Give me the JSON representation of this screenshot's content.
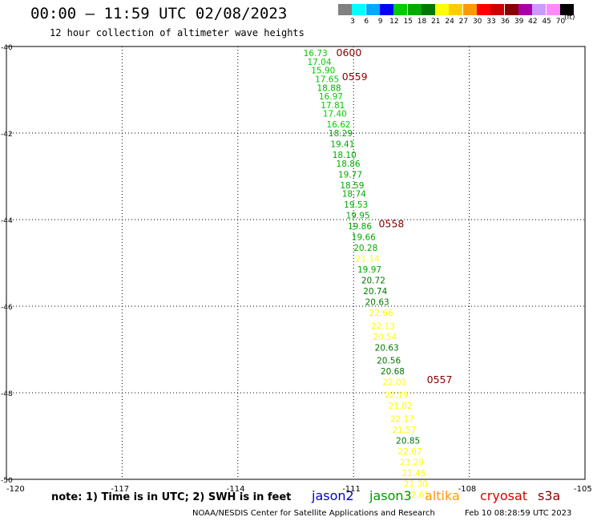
{
  "header": {
    "title": "00:00 – 11:59 UTC 02/08/2023",
    "subtitle": "12 hour collection of altimeter wave heights"
  },
  "color_scale": {
    "units": "(ft)",
    "swatches": [
      {
        "color": "#808080",
        "label": "3"
      },
      {
        "color": "#00ffff",
        "label": "6"
      },
      {
        "color": "#00aaff",
        "label": "9"
      },
      {
        "color": "#0000ff",
        "label": "12"
      },
      {
        "color": "#00cc00",
        "label": "15"
      },
      {
        "color": "#00aa00",
        "label": "18"
      },
      {
        "color": "#007700",
        "label": "21"
      },
      {
        "color": "#ffff00",
        "label": "24"
      },
      {
        "color": "#ffcc00",
        "label": "27"
      },
      {
        "color": "#ff9900",
        "label": "30"
      },
      {
        "color": "#ff0000",
        "label": "33"
      },
      {
        "color": "#cc0000",
        "label": "36"
      },
      {
        "color": "#880000",
        "label": "39"
      },
      {
        "color": "#aa00aa",
        "label": "42"
      },
      {
        "color": "#cc99ff",
        "label": "45"
      },
      {
        "color": "#ff88ff",
        "label": "70"
      },
      {
        "color": "#000000",
        "label": ""
      }
    ]
  },
  "chart_data": {
    "type": "scatter",
    "xlim": [
      -120,
      -105
    ],
    "ylim": [
      -50,
      -40
    ],
    "x_ticks": [
      "-120",
      "-117",
      "-114",
      "-111",
      "-108",
      "-105"
    ],
    "y_ticks": [
      "-40",
      "-42",
      "-44",
      "-46",
      "-48",
      "-50"
    ],
    "x_tick_values": [
      -120,
      -117,
      -114,
      -111,
      -108,
      -105
    ],
    "y_tick_values": [
      -40,
      -42,
      -44,
      -46,
      -48,
      -50
    ],
    "grid": true,
    "points": [
      {
        "lon": -112.3,
        "lat": -40.15,
        "value": "16.73",
        "color": "#00cc00"
      },
      {
        "lon": -112.2,
        "lat": -40.35,
        "value": "17.04",
        "color": "#00cc00"
      },
      {
        "lon": -112.1,
        "lat": -40.55,
        "value": "15.90",
        "color": "#00cc00"
      },
      {
        "lon": -112.0,
        "lat": -40.75,
        "value": "17.65",
        "color": "#00cc00"
      },
      {
        "lon": -111.95,
        "lat": -40.95,
        "value": "18.88",
        "color": "#00aa00"
      },
      {
        "lon": -111.9,
        "lat": -41.15,
        "value": "16.97",
        "color": "#00cc00"
      },
      {
        "lon": -111.85,
        "lat": -41.35,
        "value": "17.81",
        "color": "#00cc00"
      },
      {
        "lon": -111.8,
        "lat": -41.55,
        "value": "17.40",
        "color": "#00cc00"
      },
      {
        "lon": -111.7,
        "lat": -41.8,
        "value": "16.62",
        "color": "#00cc00"
      },
      {
        "lon": -111.65,
        "lat": -42.0,
        "value": "18.29",
        "color": "#00aa00"
      },
      {
        "lon": -111.6,
        "lat": -42.25,
        "value": "19.41",
        "color": "#00aa00"
      },
      {
        "lon": -111.55,
        "lat": -42.5,
        "value": "18.10",
        "color": "#00aa00"
      },
      {
        "lon": -111.45,
        "lat": -42.7,
        "value": "18.86",
        "color": "#00aa00"
      },
      {
        "lon": -111.4,
        "lat": -42.95,
        "value": "19.77",
        "color": "#00aa00"
      },
      {
        "lon": -111.35,
        "lat": -43.2,
        "value": "18.59",
        "color": "#00aa00"
      },
      {
        "lon": -111.3,
        "lat": -43.4,
        "value": "18.74",
        "color": "#00aa00"
      },
      {
        "lon": -111.25,
        "lat": -43.65,
        "value": "19.53",
        "color": "#00aa00"
      },
      {
        "lon": -111.2,
        "lat": -43.9,
        "value": "19.95",
        "color": "#00aa00"
      },
      {
        "lon": -111.15,
        "lat": -44.15,
        "value": "19.86",
        "color": "#00aa00"
      },
      {
        "lon": -111.05,
        "lat": -44.4,
        "value": "19.66",
        "color": "#00aa00"
      },
      {
        "lon": -111.0,
        "lat": -44.65,
        "value": "20.28",
        "color": "#00aa00"
      },
      {
        "lon": -110.95,
        "lat": -44.9,
        "value": "21.14",
        "color": "#ffff00"
      },
      {
        "lon": -110.9,
        "lat": -45.15,
        "value": "19.97",
        "color": "#00aa00"
      },
      {
        "lon": -110.8,
        "lat": -45.4,
        "value": "20.72",
        "color": "#007700"
      },
      {
        "lon": -110.75,
        "lat": -45.65,
        "value": "20.74",
        "color": "#007700"
      },
      {
        "lon": -110.7,
        "lat": -45.9,
        "value": "20.63",
        "color": "#007700"
      },
      {
        "lon": -110.6,
        "lat": -46.15,
        "value": "22.66",
        "color": "#ffff00"
      },
      {
        "lon": -110.55,
        "lat": -46.45,
        "value": "22.13",
        "color": "#ffff00"
      },
      {
        "lon": -110.5,
        "lat": -46.7,
        "value": "20.54",
        "color": "#ffff00"
      },
      {
        "lon": -110.45,
        "lat": -46.95,
        "value": "20.63",
        "color": "#007700"
      },
      {
        "lon": -110.4,
        "lat": -47.25,
        "value": "20.56",
        "color": "#007700"
      },
      {
        "lon": -110.3,
        "lat": -47.5,
        "value": "20.68",
        "color": "#007700"
      },
      {
        "lon": -110.25,
        "lat": -47.75,
        "value": "22.01",
        "color": "#ffff00"
      },
      {
        "lon": -110.2,
        "lat": -48.05,
        "value": "22.19",
        "color": "#ffff00"
      },
      {
        "lon": -110.1,
        "lat": -48.3,
        "value": "21.82",
        "color": "#ffff00"
      },
      {
        "lon": -110.05,
        "lat": -48.6,
        "value": "22.17",
        "color": "#ffff00"
      },
      {
        "lon": -110.0,
        "lat": -48.85,
        "value": "21.57",
        "color": "#ffff00"
      },
      {
        "lon": -109.9,
        "lat": -49.1,
        "value": "20.85",
        "color": "#007700"
      },
      {
        "lon": -109.85,
        "lat": -49.35,
        "value": "22.07",
        "color": "#ffff00"
      },
      {
        "lon": -109.8,
        "lat": -49.6,
        "value": "23.29",
        "color": "#ffff00"
      },
      {
        "lon": -109.75,
        "lat": -49.85,
        "value": "21.45",
        "color": "#ffff00"
      },
      {
        "lon": -109.7,
        "lat": -50.1,
        "value": "21.30",
        "color": "#ffff00"
      },
      {
        "lon": -109.65,
        "lat": -50.35,
        "value": "22.61",
        "color": "#ffff00"
      }
    ],
    "time_labels": [
      {
        "lon": -111.45,
        "lat": -40.15,
        "text": "0600",
        "color": "#880000"
      },
      {
        "lon": -111.3,
        "lat": -40.7,
        "text": "0559",
        "color": "#880000"
      },
      {
        "lon": -110.35,
        "lat": -44.1,
        "text": "0558",
        "color": "#880000"
      },
      {
        "lon": -109.1,
        "lat": -47.7,
        "text": "0557",
        "color": "#880000"
      }
    ]
  },
  "footer": {
    "note": "note: 1) Time is in UTC; 2) SWH is in feet",
    "satellites": [
      {
        "name": "jason2",
        "color": "#0000cc"
      },
      {
        "name": "jason3",
        "color": "#009900"
      },
      {
        "name": "altika",
        "color": "#ff9900"
      },
      {
        "name": "cryosat",
        "color": "#dd0000"
      },
      {
        "name": "s3a",
        "color": "#880000"
      }
    ],
    "credit": "NOAA/NESDIS Center for Satellite Applications and Research",
    "timestamp": "Feb 10 08:28:59 UTC 2023"
  }
}
